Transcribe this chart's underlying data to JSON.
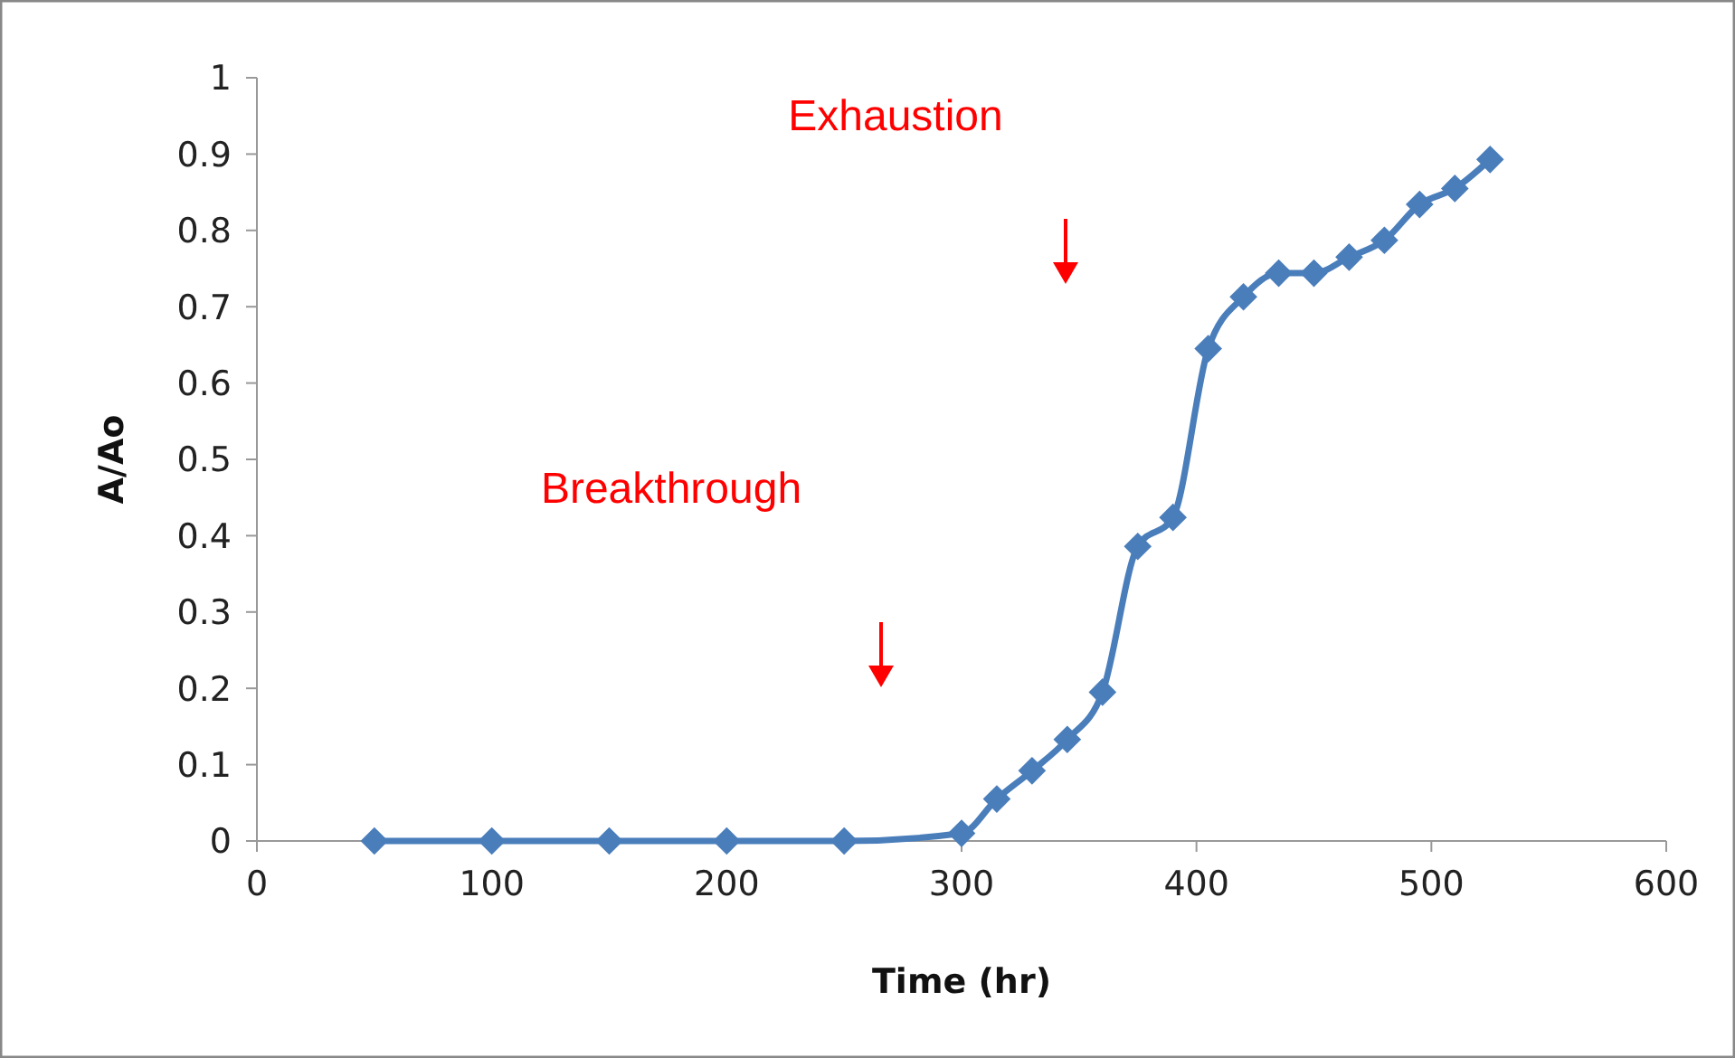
{
  "chart_data": {
    "type": "line",
    "xlabel": "Time (hr)",
    "ylabel": "A/Ao",
    "xlim": [
      0,
      600
    ],
    "xticks": [
      0,
      100,
      200,
      300,
      400,
      500,
      600
    ],
    "ylim": [
      0,
      1
    ],
    "yticks": [
      0,
      0.1,
      0.2,
      0.3,
      0.4,
      0.5,
      0.6,
      0.7,
      0.8,
      0.9,
      1
    ],
    "series": [
      {
        "color": "#4a7ebb",
        "x": [
          50,
          100,
          150,
          200,
          250,
          300,
          315,
          330,
          345,
          360,
          375,
          390,
          405,
          420,
          435,
          450,
          465,
          480,
          495,
          510,
          525
        ],
        "values": [
          0,
          0,
          0,
          0,
          0,
          0.01,
          0.055,
          0.092,
          0.133,
          0.195,
          0.386,
          0.424,
          0.645,
          0.713,
          0.744,
          0.744,
          0.765,
          0.787,
          0.834,
          0.855,
          0.893
        ]
      }
    ],
    "marker": "diamond",
    "line_style": "solid",
    "grid": false,
    "annotations": [
      "Breakthrough",
      "Exhaustion"
    ]
  }
}
